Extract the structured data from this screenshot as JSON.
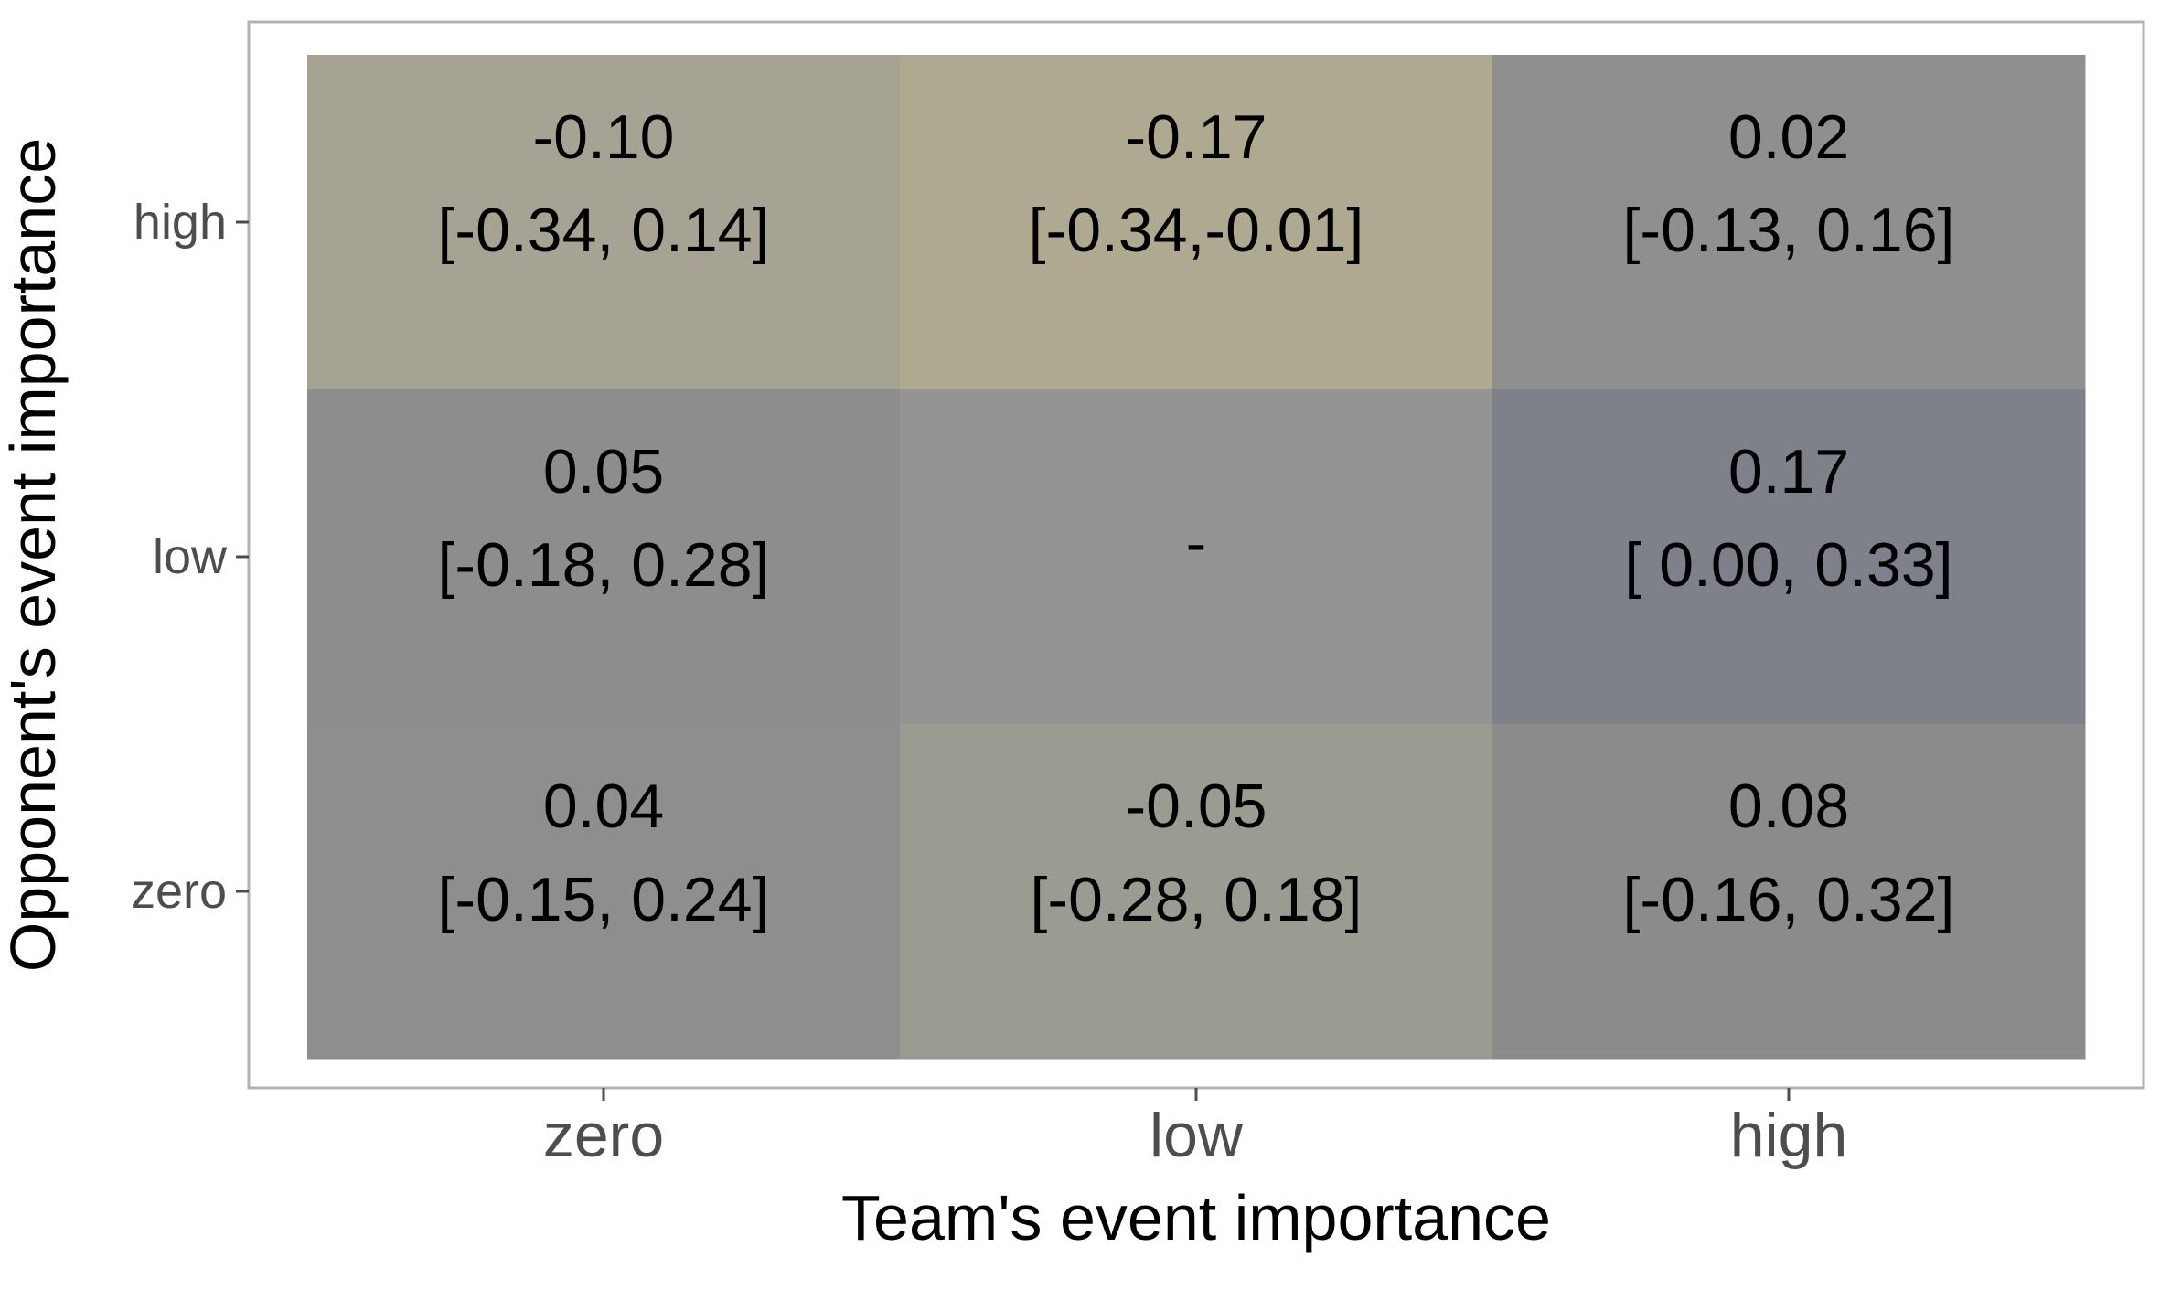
{
  "chart_data": {
    "type": "heatmap",
    "title": "",
    "xlabel": "Team's event importance",
    "ylabel": "Opponent's event importance",
    "x_categories": [
      "zero",
      "low",
      "high"
    ],
    "y_categories": [
      "zero",
      "low",
      "high"
    ],
    "cells": [
      {
        "x": "zero",
        "y": "high",
        "value": "-0.10",
        "ci": "[-0.34, 0.14]",
        "color": "#a6a394"
      },
      {
        "x": "low",
        "y": "high",
        "value": "-0.17",
        "ci": "[-0.34,-0.01]",
        "color": "#aea990"
      },
      {
        "x": "high",
        "y": "high",
        "value": "0.02",
        "ci": "[-0.13, 0.16]",
        "color": "#8f8f8e"
      },
      {
        "x": "zero",
        "y": "low",
        "value": "0.05",
        "ci": "[-0.18, 0.28]",
        "color": "#8d8d8d"
      },
      {
        "x": "low",
        "y": "low",
        "value": "-",
        "ci": "",
        "color": "#959493"
      },
      {
        "x": "high",
        "y": "low",
        "value": "0.17",
        "ci": "[ 0.00, 0.33]",
        "color": "#7e808a"
      },
      {
        "x": "zero",
        "y": "zero",
        "value": "0.04",
        "ci": "[-0.15, 0.24]",
        "color": "#8e8e8e"
      },
      {
        "x": "low",
        "y": "zero",
        "value": "-0.05",
        "ci": "[-0.28, 0.18]",
        "color": "#9b9b91"
      },
      {
        "x": "high",
        "y": "zero",
        "value": "0.08",
        "ci": "[-0.16, 0.32]",
        "color": "#8b8b8c"
      }
    ],
    "grid": false,
    "legend": "none",
    "colors": {
      "panel_border": "#b3b3b3",
      "tick": "#4d4d4d",
      "tick_label": "#4d4d4d",
      "axis_title": "#000000",
      "cell_text": "#000000"
    }
  }
}
